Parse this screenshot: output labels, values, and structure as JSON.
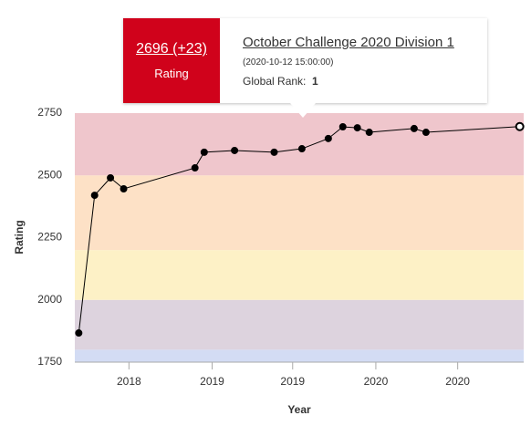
{
  "chart_data": {
    "type": "line",
    "y_label": "Rating",
    "x_label": "Year",
    "x": [
      2017.43,
      2017.55,
      2017.67,
      2017.77,
      2018.31,
      2018.38,
      2018.61,
      2018.91,
      2019.12,
      2019.32,
      2019.43,
      2019.54,
      2019.63,
      2019.97,
      2020.06,
      2020.77
    ],
    "values": [
      1867,
      2420,
      2490,
      2446,
      2530,
      2593,
      2600,
      2593,
      2607,
      2648,
      2695,
      2691,
      2673,
      2688,
      2673,
      2696
    ],
    "color": "#000000",
    "xlim": [
      2017.4,
      2020.8
    ],
    "xticks": [
      {
        "value": 2017.81,
        "label": "2018"
      },
      {
        "value": 2018.44,
        "label": "2019"
      },
      {
        "value": 2019.05,
        "label": "2019"
      },
      {
        "value": 2019.68,
        "label": "2020"
      },
      {
        "value": 2020.3,
        "label": "2020"
      }
    ],
    "ylim": [
      1750,
      2750
    ],
    "yticks": [
      1750,
      2000,
      2250,
      2500,
      2750
    ],
    "bands": [
      {
        "from": 1750,
        "to": 1800,
        "color": "#d3dcf4"
      },
      {
        "from": 1800,
        "to": 2000,
        "color": "#ddd3de"
      },
      {
        "from": 2000,
        "to": 2200,
        "color": "#fdf1c6"
      },
      {
        "from": 2200,
        "to": 2500,
        "color": "#fde1c6"
      },
      {
        "from": 2500,
        "to": 2750,
        "color": "#efc6cc"
      }
    ],
    "tooltip": {
      "rating_label": "2696 (+23)",
      "rating_caption": "Rating",
      "contest": "October Challenge 2020 Division 1",
      "date": "(2020-10-12 15:00:00)",
      "rank_caption": "Global Rank:",
      "rank": "1",
      "color": "#d0021b"
    }
  }
}
